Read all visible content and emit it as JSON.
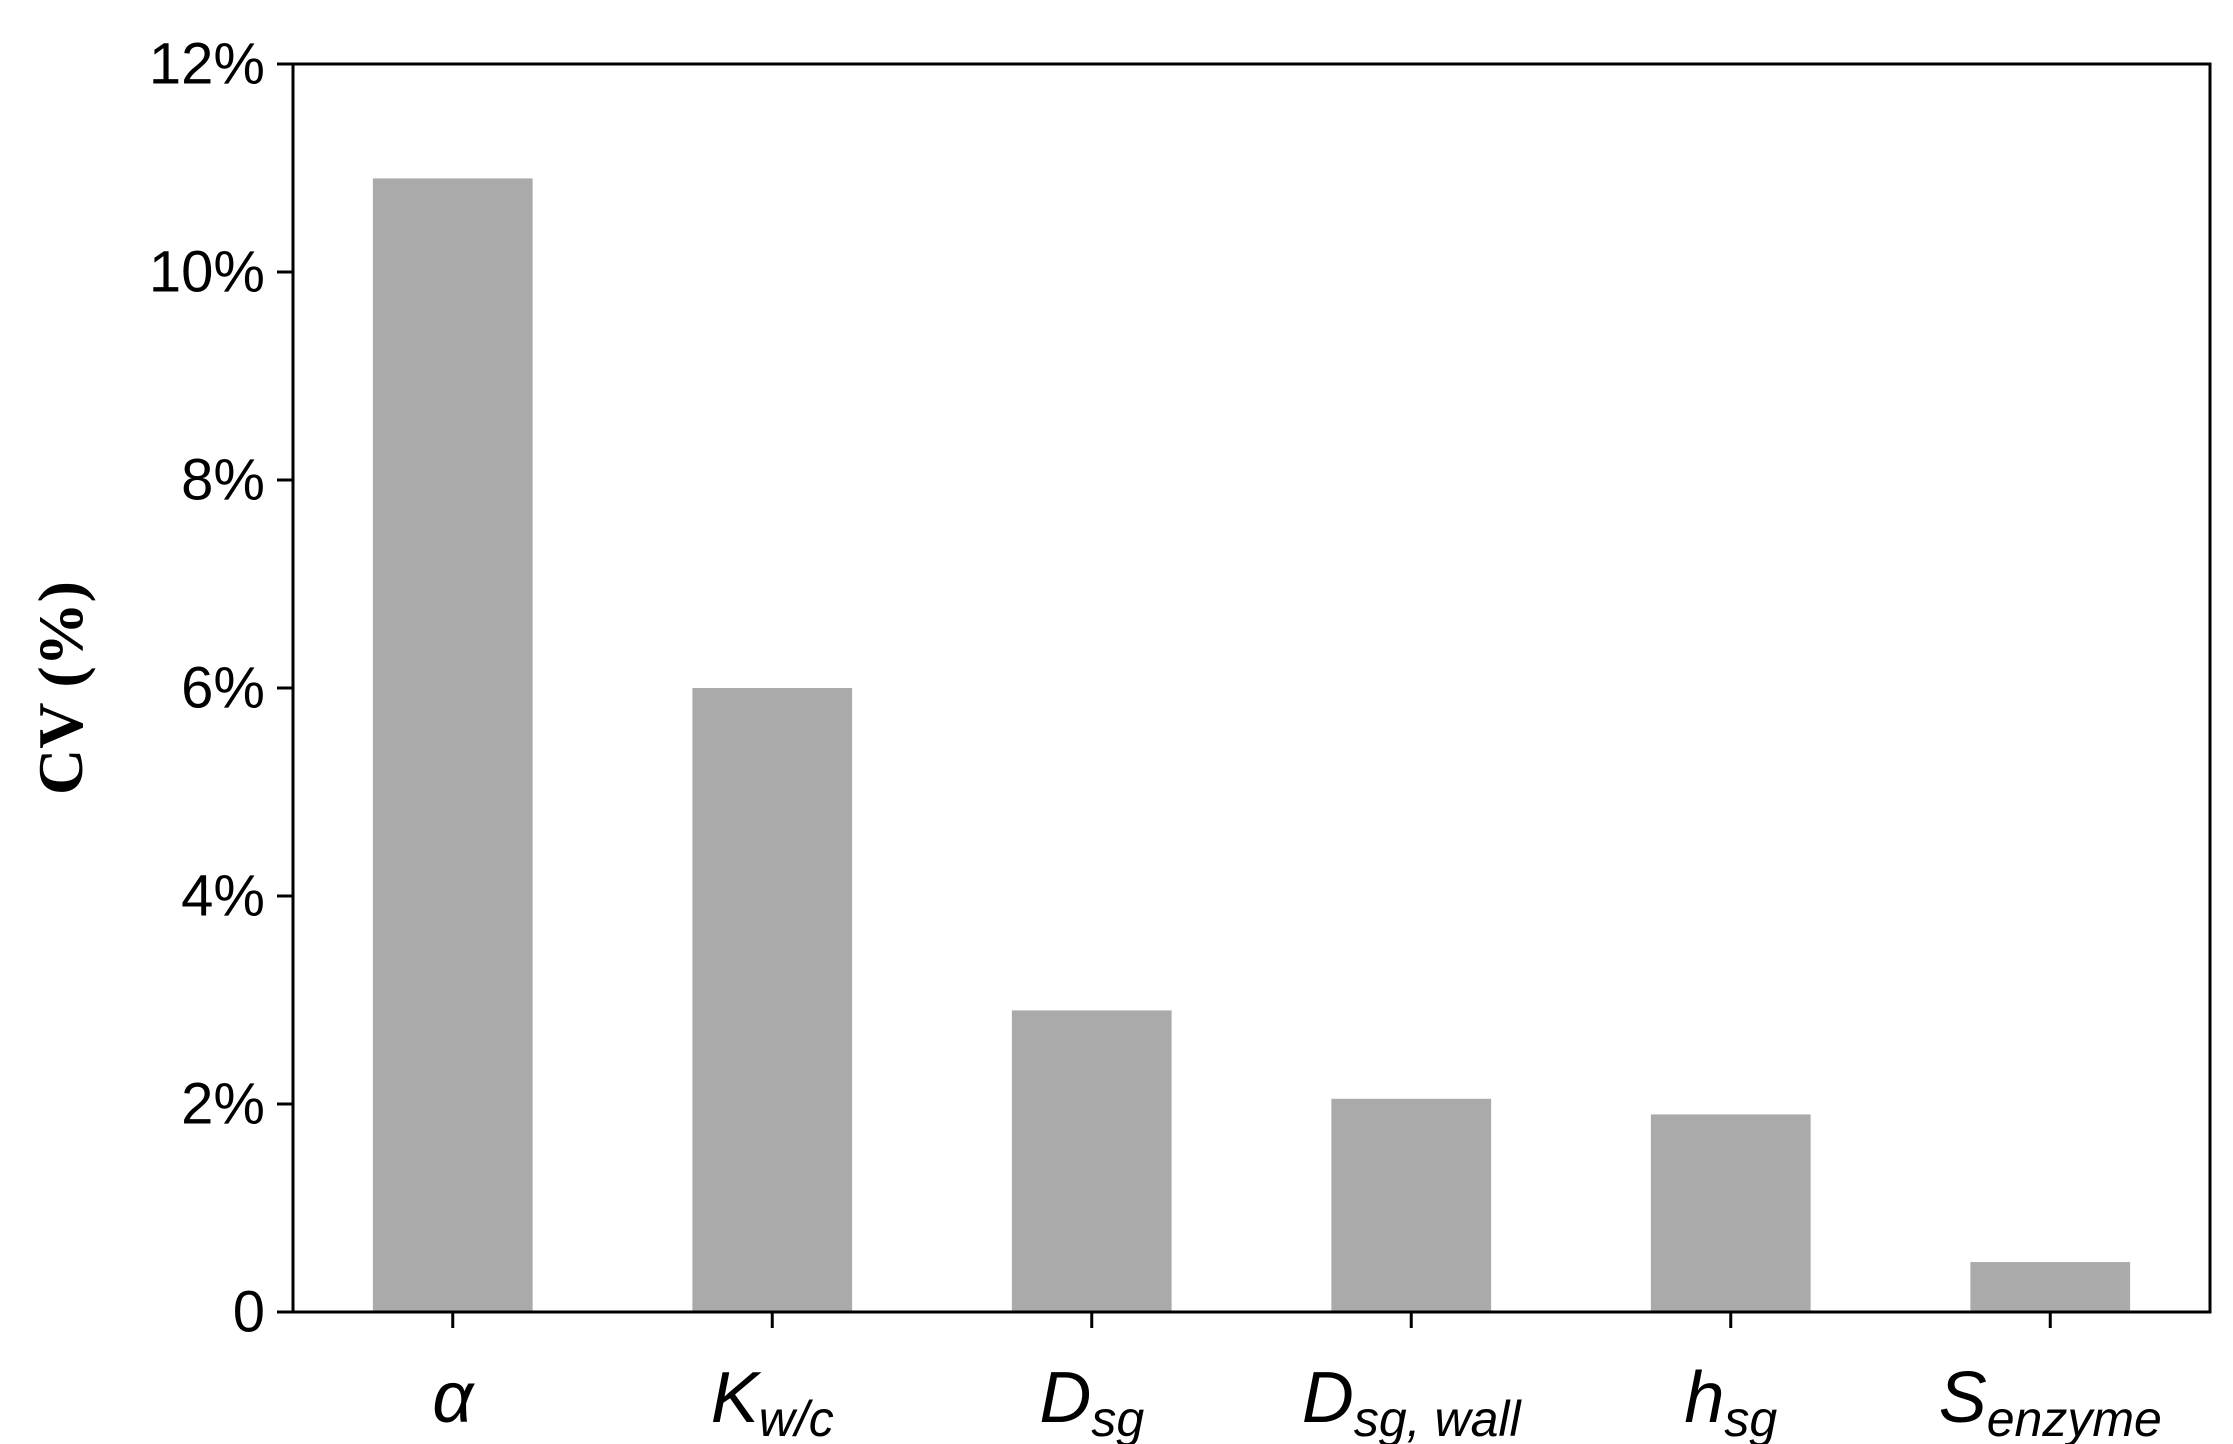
{
  "chart_data": {
    "type": "bar",
    "categories": [
      {
        "main": "α",
        "sub": ""
      },
      {
        "main": "K",
        "sub": "w/c"
      },
      {
        "main": "D",
        "sub": "sg"
      },
      {
        "main": "D",
        "sub": "sg, wall"
      },
      {
        "main": "h",
        "sub": "sg"
      },
      {
        "main": "S",
        "sub": "enzyme"
      }
    ],
    "values": [
      10.9,
      6.0,
      2.9,
      2.05,
      1.9,
      0.48
    ],
    "ylabel": "CV (%)",
    "ylim": [
      0,
      12
    ],
    "yticks": [
      {
        "value": 0,
        "label": "0"
      },
      {
        "value": 2,
        "label": "2%"
      },
      {
        "value": 4,
        "label": "4%"
      },
      {
        "value": 6,
        "label": "6%"
      },
      {
        "value": 8,
        "label": "8%"
      },
      {
        "value": 10,
        "label": "10%"
      },
      {
        "value": 12,
        "label": "12%"
      }
    ],
    "bar_color": "#aaaaaa",
    "grid": false,
    "legend": "none"
  }
}
